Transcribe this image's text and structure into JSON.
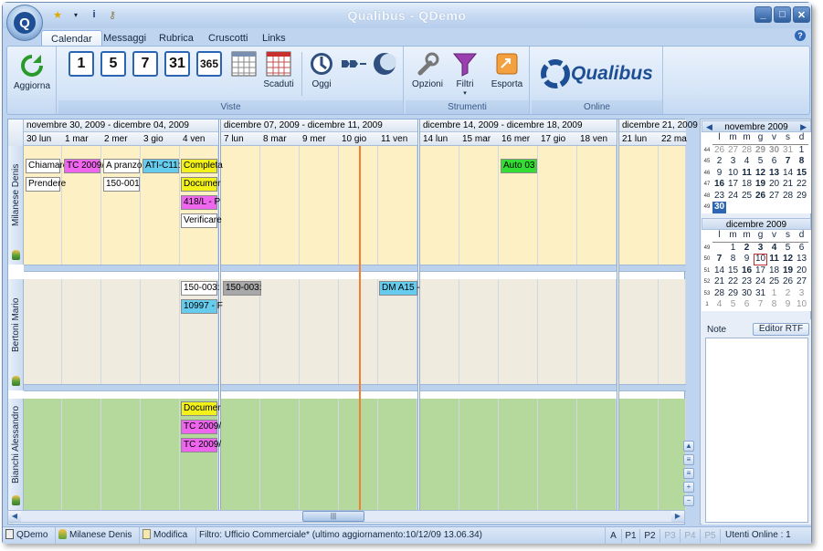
{
  "title": "Qualibus  -  QDemo",
  "tabs": [
    "Calendar",
    "Messaggi",
    "Rubrica",
    "Cruscotti",
    "Links"
  ],
  "ribbon": {
    "aggiorna": "Aggiorna",
    "days": [
      "1",
      "5",
      "7",
      "31",
      "365"
    ],
    "scaduti": "Scaduti",
    "oggi": "Oggi",
    "viste": "Viste",
    "opzioni": "Opzioni",
    "filtri": "Filtri",
    "esporta": "Esporta",
    "strumenti": "Strumenti",
    "online": "Online",
    "logo": "Qualibus"
  },
  "weeks": [
    "novembre 30, 2009 - dicembre 04, 2009",
    "dicembre 07, 2009 - dicembre 11, 2009",
    "dicembre 14, 2009 - dicembre 18, 2009",
    "dicembre 21, 2009"
  ],
  "days": [
    "30 lun",
    "1 mar",
    "2 mer",
    "3 gio",
    "4 ven",
    "7 lun",
    "8 mar",
    "9 mer",
    "10 gio",
    "11 ven",
    "14 lun",
    "15 mar",
    "16 mer",
    "17 gio",
    "18 ven",
    "21 lun",
    "22 ma"
  ],
  "rows": [
    "Milanese Denis",
    "Bertoni Mario",
    "Bianchi Alessandro"
  ],
  "appts": [
    "Chiamare",
    "TC 2009/",
    "A pranzo",
    "ATI-C11:",
    "Completa",
    "Prendere",
    "150-001",
    "Documer",
    "418/L - P",
    "Verificare",
    "Auto 03",
    "150-003:",
    "10997 - F",
    "150-003:",
    "DM A15 -",
    "Documer",
    "TC 2009/",
    "TC 2009/"
  ],
  "mini1": {
    "title": "novembre 2009",
    "dow": [
      "l",
      "m",
      "m",
      "g",
      "v",
      "s",
      "d"
    ],
    "weeks": [
      "44",
      "45",
      "46",
      "47",
      "48",
      "49"
    ],
    "rows": [
      [
        "26",
        "27",
        "28",
        "29",
        "30",
        "31",
        "1"
      ],
      [
        "2",
        "3",
        "4",
        "5",
        "6",
        "7",
        "8"
      ],
      [
        "9",
        "10",
        "11",
        "12",
        "13",
        "14",
        "15"
      ],
      [
        "16",
        "17",
        "18",
        "19",
        "20",
        "21",
        "22"
      ],
      [
        "23",
        "24",
        "25",
        "26",
        "27",
        "28",
        "29"
      ],
      [
        "30",
        "",
        "",
        "",
        "",
        "",
        ""
      ]
    ]
  },
  "mini2": {
    "title": "dicembre 2009",
    "dow": [
      "l",
      "m",
      "m",
      "g",
      "v",
      "s",
      "d"
    ],
    "weeks": [
      "49",
      "50",
      "51",
      "52",
      "53",
      "1"
    ],
    "rows": [
      [
        "",
        "1",
        "2",
        "3",
        "4",
        "5",
        "6"
      ],
      [
        "7",
        "8",
        "9",
        "10",
        "11",
        "12",
        "13"
      ],
      [
        "14",
        "15",
        "16",
        "17",
        "18",
        "19",
        "20"
      ],
      [
        "21",
        "22",
        "23",
        "24",
        "25",
        "26",
        "27"
      ],
      [
        "28",
        "29",
        "30",
        "31",
        "1",
        "2",
        "3"
      ],
      [
        "4",
        "5",
        "6",
        "7",
        "8",
        "9",
        "10"
      ]
    ]
  },
  "note": {
    "label": "Note",
    "button": "Editor RTF"
  },
  "status": {
    "app": "QDemo",
    "user": "Milanese Denis",
    "mode": "Modifica",
    "filter": "Filtro: Ufficio Commerciale* (ultimo aggiornamento:10/12/09 13.06.34)",
    "pages": [
      "A",
      "P1",
      "P2",
      "P3",
      "P4",
      "P5"
    ],
    "online": "Utenti Online : 1"
  },
  "colors": {
    "row1": "#fcf0c4",
    "row2": "#efebde",
    "row3": "#b5d89c",
    "magenta": "#ee66ee",
    "cyan": "#66ccee",
    "yellow": "#f2f21a",
    "green": "#33dd33",
    "gray": "#a8a8a8",
    "now": "#f08030"
  }
}
